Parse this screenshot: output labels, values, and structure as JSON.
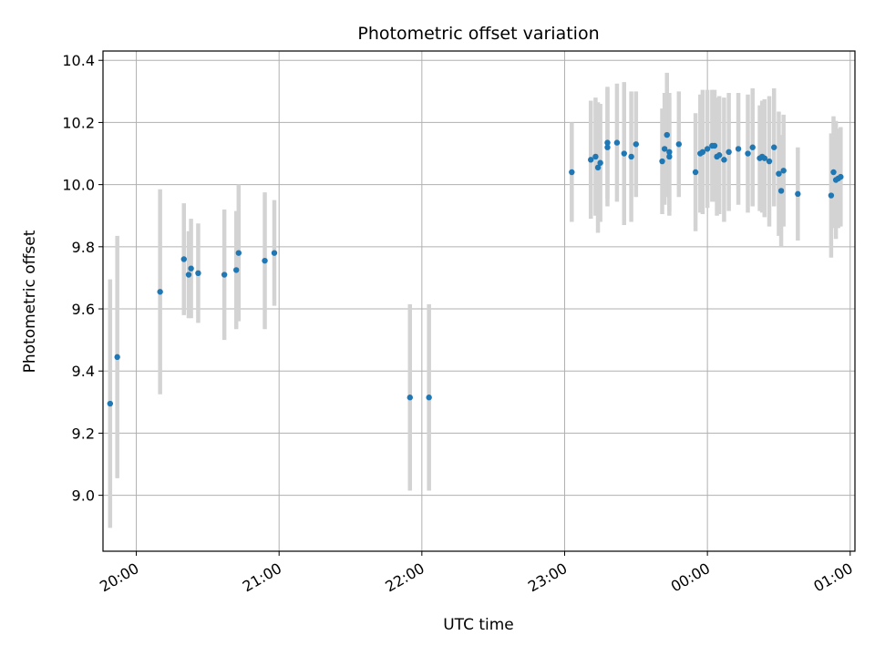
{
  "chart_data": {
    "type": "scatter",
    "title": "Photometric offset variation",
    "xlabel": "UTC time",
    "ylabel": "Photometric offset",
    "grid": true,
    "xlim": [
      "19:46",
      "25:02"
    ],
    "ylim": [
      8.82,
      10.43
    ],
    "x_ticks": [
      "20:00",
      "21:00",
      "22:00",
      "23:00",
      "00:00",
      "01:00"
    ],
    "y_ticks": [
      "9.0",
      "9.2",
      "9.4",
      "9.6",
      "9.8",
      "10.0",
      "10.2",
      "10.4"
    ],
    "colors": {
      "point": "#1f77b4",
      "errorbar": "#d3d3d3",
      "grid": "#b0b0b0"
    },
    "series": [
      {
        "x": [
          "19:49",
          "19:52",
          "20:10",
          "20:20",
          "20:22",
          "20:23",
          "20:26",
          "20:37",
          "20:42",
          "20:43",
          "20:54",
          "20:58",
          "21:55",
          "22:03",
          "23:03",
          "23:11",
          "23:13",
          "23:14",
          "23:15",
          "23:18",
          "23:18",
          "23:22",
          "23:25",
          "23:28",
          "23:30",
          "23:41",
          "23:42",
          "23:43",
          "23:44",
          "23:44",
          "23:48",
          "23:55",
          "23:57",
          "23:58",
          "24:00",
          "24:02",
          "24:03",
          "24:04",
          "24:05",
          "24:07",
          "24:09",
          "24:13",
          "24:17",
          "24:19",
          "24:22",
          "24:23",
          "24:24",
          "24:26",
          "24:28",
          "24:30",
          "24:31",
          "24:32",
          "24:38",
          "24:52",
          "24:53",
          "24:54",
          "24:55",
          "24:56"
        ],
        "y": [
          9.295,
          9.445,
          9.655,
          9.76,
          9.71,
          9.73,
          9.715,
          9.71,
          9.725,
          9.78,
          9.755,
          9.78,
          9.315,
          9.315,
          10.04,
          10.08,
          10.09,
          10.055,
          10.07,
          10.12,
          10.135,
          10.135,
          10.1,
          10.09,
          10.13,
          10.075,
          10.115,
          10.16,
          10.105,
          10.09,
          10.13,
          10.04,
          10.1,
          10.105,
          10.115,
          10.125,
          10.125,
          10.09,
          10.095,
          10.08,
          10.105,
          10.115,
          10.1,
          10.12,
          10.085,
          10.09,
          10.085,
          10.075,
          10.12,
          10.035,
          9.98,
          10.045,
          9.97,
          9.965,
          10.04,
          10.015,
          10.02,
          10.025
        ],
        "err": [
          0.4,
          0.39,
          0.33,
          0.18,
          0.14,
          0.16,
          0.16,
          0.21,
          0.19,
          0.22,
          0.22,
          0.17,
          0.3,
          0.3,
          0.16,
          0.19,
          0.19,
          0.21,
          0.19,
          0.19,
          0.18,
          0.19,
          0.23,
          0.21,
          0.17,
          0.17,
          0.18,
          0.2,
          0.19,
          0.19,
          0.17,
          0.19,
          0.19,
          0.2,
          0.19,
          0.18,
          0.18,
          0.19,
          0.19,
          0.2,
          0.19,
          0.18,
          0.19,
          0.19,
          0.17,
          0.18,
          0.19,
          0.21,
          0.19,
          0.2,
          0.18,
          0.18,
          0.15,
          0.2,
          0.18,
          0.19,
          0.16,
          0.16
        ]
      }
    ]
  }
}
